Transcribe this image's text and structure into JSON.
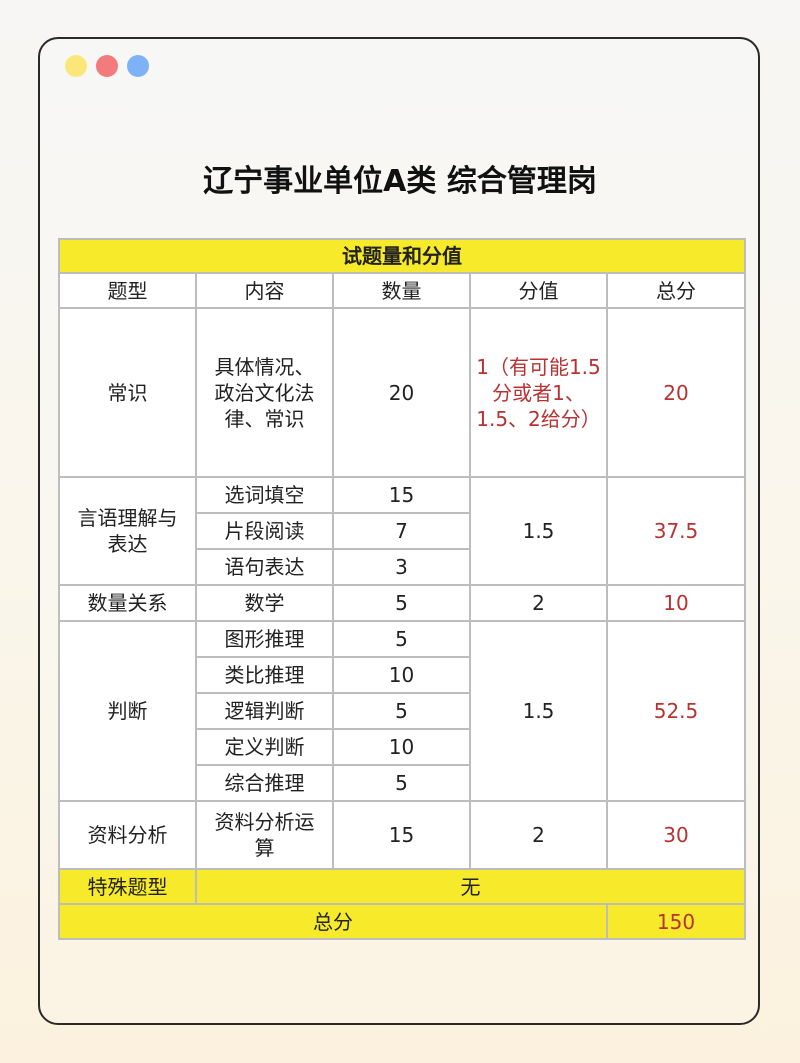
{
  "window": {
    "dots": [
      {
        "name": "yellow",
        "color": "#fbe67a"
      },
      {
        "name": "red",
        "color": "#f37b7b"
      },
      {
        "name": "blue",
        "color": "#7eb2f7"
      }
    ]
  },
  "title": "辽宁事业单位A类 综合管理岗",
  "table": {
    "caption": "试题量和分值",
    "headers": [
      "题型",
      "内容",
      "数量",
      "分值",
      "总分"
    ],
    "changshi": {
      "type": "常识",
      "content": "具体情况、政治文化法律、常识",
      "count": "20",
      "score": "1（有可能1.5分或者1、1.5、2给分）",
      "total": "20"
    },
    "yanyu": {
      "type": "言语理解与表达",
      "rows": [
        {
          "content": "选词填空",
          "count": "15"
        },
        {
          "content": "片段阅读",
          "count": "7"
        },
        {
          "content": "语句表达",
          "count": "3"
        }
      ],
      "score": "1.5",
      "total": "37.5"
    },
    "shuliang": {
      "type": "数量关系",
      "content": "数学",
      "count": "5",
      "score": "2",
      "total": "10"
    },
    "panduan": {
      "type": "判断",
      "rows": [
        {
          "content": "图形推理",
          "count": "5"
        },
        {
          "content": "类比推理",
          "count": "10"
        },
        {
          "content": "逻辑判断",
          "count": "5"
        },
        {
          "content": "定义判断",
          "count": "10"
        },
        {
          "content": "综合推理",
          "count": "5"
        }
      ],
      "score": "1.5",
      "total": "52.5"
    },
    "ziliao": {
      "type": "资料分析",
      "content": "资料分析运算",
      "count": "15",
      "score": "2",
      "total": "30"
    },
    "special": {
      "label": "特殊题型",
      "value": "无"
    },
    "sum": {
      "label": "总分",
      "value": "150"
    }
  },
  "colors": {
    "highlight": "#f7ea2a",
    "accent_red": "#b83232"
  }
}
